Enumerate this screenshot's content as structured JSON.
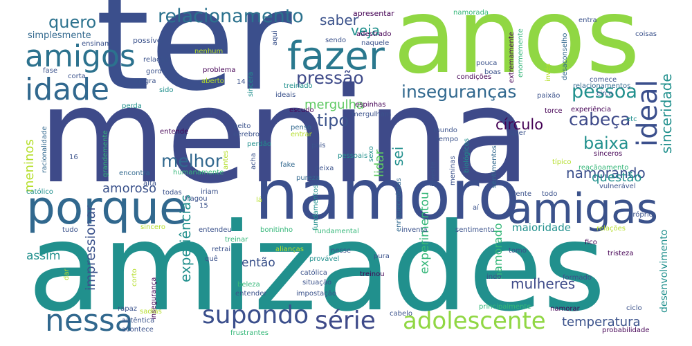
{
  "palette": {
    "dark_purple": "#440154",
    "indigo": "#3b4f8c",
    "blue": "#31688e",
    "teal": "#21908d",
    "green": "#35b779",
    "lime": "#90d743",
    "yellow": "#d2e21b"
  },
  "words": [
    {
      "text": "ter",
      "color": "#3b4f8c"
    },
    {
      "text": "anos",
      "color": "#90d743"
    },
    {
      "text": "menina",
      "color": "#3e4a89"
    },
    {
      "text": "amizades",
      "color": "#21908d"
    },
    {
      "text": "namoro",
      "color": "#3b4f8c"
    },
    {
      "text": "porque",
      "color": "#31688e"
    },
    {
      "text": "fazer",
      "color": "#2a788e"
    },
    {
      "text": "amigas",
      "color": "#3b528b"
    },
    {
      "text": "amigos",
      "color": "#2c728e"
    },
    {
      "text": "idade",
      "color": "#31688e"
    },
    {
      "text": "nessa",
      "color": "#31688e"
    },
    {
      "text": "supondo",
      "color": "#3b4f8c"
    },
    {
      "text": "série",
      "color": "#3e4a89"
    },
    {
      "text": "adolescente",
      "color": "#90d743"
    },
    {
      "text": "relacionamento",
      "color": "#2c728e"
    },
    {
      "text": "quero",
      "color": "#2c728e"
    },
    {
      "text": "saber",
      "color": "#3b528b"
    },
    {
      "text": "veja",
      "color": "#21908d"
    },
    {
      "text": "pressão",
      "color": "#3e4a89"
    },
    {
      "text": "inseguranças",
      "color": "#31688e"
    },
    {
      "text": "pessoa",
      "color": "#21908d"
    },
    {
      "text": "ideal",
      "color": "#3b4f8c"
    },
    {
      "text": "sinceridade",
      "color": "#21908d"
    },
    {
      "text": "mergulha",
      "color": "#5ec962"
    },
    {
      "text": "tipo",
      "color": "#3b528b"
    },
    {
      "text": "círculo",
      "color": "#440154"
    },
    {
      "text": "cabeça",
      "color": "#3e4a89"
    },
    {
      "text": "baixa",
      "color": "#21908d"
    },
    {
      "text": "melhor",
      "color": "#31688e"
    },
    {
      "text": "lidar",
      "color": "#5ec962"
    },
    {
      "text": "sei",
      "color": "#21908d"
    },
    {
      "text": "namorando",
      "color": "#3b4f8c"
    },
    {
      "text": "questão",
      "color": "#21908d"
    },
    {
      "text": "amoroso",
      "color": "#3b528b"
    },
    {
      "text": "experiências",
      "color": "#21908d"
    },
    {
      "text": "impressionar",
      "color": "#3b528b"
    },
    {
      "text": "meninos",
      "color": "#b5de2b"
    },
    {
      "text": "assim",
      "color": "#21908d"
    },
    {
      "text": "então",
      "color": "#3b528b"
    },
    {
      "text": "experimentou",
      "color": "#35b779"
    },
    {
      "text": "namorado",
      "color": "#35b779"
    },
    {
      "text": "mulheres",
      "color": "#3e4a89"
    },
    {
      "text": "maioridade",
      "color": "#21908d"
    },
    {
      "text": "temperatura",
      "color": "#3b528b"
    },
    {
      "text": "desenvolvimento",
      "color": "#21908d"
    },
    {
      "text": "simplesmente",
      "color": "#31688e"
    },
    {
      "text": "ensinam",
      "color": "#3b528b"
    },
    {
      "text": "possível",
      "color": "#3b528b"
    },
    {
      "text": "apresentar",
      "color": "#440154"
    },
    {
      "text": "namorada",
      "color": "#35b779"
    },
    {
      "text": "adestrado",
      "color": "#440154"
    },
    {
      "text": "naquele",
      "color": "#3b528b"
    },
    {
      "text": "sendo",
      "color": "#3b528b"
    },
    {
      "text": "aqui",
      "color": "#3b528b"
    },
    {
      "text": "sincera",
      "color": "#21908d"
    },
    {
      "text": "treinado",
      "color": "#21908d"
    },
    {
      "text": "relação",
      "color": "#3b528b"
    },
    {
      "text": "nenhum",
      "color": "#b5de2b"
    },
    {
      "text": "gorda",
      "color": "#3b528b"
    },
    {
      "text": "problema",
      "color": "#440154"
    },
    {
      "text": "aberto",
      "color": "#b5de2b"
    },
    {
      "text": "magra",
      "color": "#3b528b"
    },
    {
      "text": "sido",
      "color": "#21908d"
    },
    {
      "text": "14",
      "color": "#3b528b"
    },
    {
      "text": "fase",
      "color": "#3b528b"
    },
    {
      "text": "corta",
      "color": "#3b528b"
    },
    {
      "text": "perda",
      "color": "#21908d"
    },
    {
      "text": "18",
      "color": "#3b528b"
    },
    {
      "text": "racionalidade",
      "color": "#31688e"
    },
    {
      "text": "entende",
      "color": "#440154"
    },
    {
      "text": "grandemente",
      "color": "#35b779"
    },
    {
      "text": "16",
      "color": "#3b528b"
    },
    {
      "text": "católico",
      "color": "#21908d"
    },
    {
      "text": "encontra",
      "color": "#31688e"
    },
    {
      "text": "alta",
      "color": "#3b528b"
    },
    {
      "text": "humanamente",
      "color": "#35b779"
    },
    {
      "text": "cérebro",
      "color": "#3b528b"
    },
    {
      "text": "peito",
      "color": "#3b528b"
    },
    {
      "text": "perdão",
      "color": "#21908d"
    },
    {
      "text": "penso",
      "color": "#31688e"
    },
    {
      "text": "entrar",
      "color": "#b5de2b"
    },
    {
      "text": "escudo",
      "color": "#440154"
    },
    {
      "text": "ideais",
      "color": "#3b528b"
    },
    {
      "text": "espinhas",
      "color": "#440154"
    },
    {
      "text": "mergulham",
      "color": "#3b528b"
    },
    {
      "text": "antes",
      "color": "#b5de2b"
    },
    {
      "text": "acha",
      "color": "#3b528b"
    },
    {
      "text": "sexo",
      "color": "#21908d"
    },
    {
      "text": "fake",
      "color": "#31688e"
    },
    {
      "text": "pais",
      "color": "#3b528b"
    },
    {
      "text": "pessoais",
      "color": "#21908d"
    },
    {
      "text": "deixa",
      "color": "#3b528b"
    },
    {
      "text": "pureza",
      "color": "#31688e"
    },
    {
      "text": "todas",
      "color": "#3b528b"
    },
    {
      "text": "iriam",
      "color": "#3b528b"
    },
    {
      "text": "fragou",
      "color": "#3b528b"
    },
    {
      "text": "15",
      "color": "#3b528b"
    },
    {
      "text": "lá",
      "color": "#b5de2b"
    },
    {
      "text": "fundamentos",
      "color": "#21908d"
    },
    {
      "text": "enriquecedoras",
      "color": "#31688e"
    },
    {
      "text": "investe",
      "color": "#3b528b"
    },
    {
      "text": "meninas",
      "color": "#3b528b"
    },
    {
      "text": "biológicos",
      "color": "#21908d"
    },
    {
      "text": "sentimentos",
      "color": "#31688e"
    },
    {
      "text": "típico",
      "color": "#b5de2b"
    },
    {
      "text": "sinceros",
      "color": "#440154"
    },
    {
      "text": "reaçãoamento",
      "color": "#35b779"
    },
    {
      "text": "vulnerável",
      "color": "#3b528b"
    },
    {
      "text": "frente",
      "color": "#3b528b"
    },
    {
      "text": "todo",
      "color": "#3b528b"
    },
    {
      "text": "aí",
      "color": "#3b528b"
    },
    {
      "text": "tudo",
      "color": "#3b528b"
    },
    {
      "text": "sincero",
      "color": "#b5de2b"
    },
    {
      "text": "entendeu",
      "color": "#3b528b"
    },
    {
      "text": "bonitinho",
      "color": "#35b779"
    },
    {
      "text": "fundamental",
      "color": "#35b779"
    },
    {
      "text": "inventa",
      "color": "#3b528b"
    },
    {
      "text": "sentimento",
      "color": "#3b528b"
    },
    {
      "text": "relações",
      "color": "#b5de2b"
    },
    {
      "text": "treinar",
      "color": "#35b779"
    },
    {
      "text": "retrai",
      "color": "#3b528b"
    },
    {
      "text": "alianças",
      "color": "#b5de2b"
    },
    {
      "text": "nesse",
      "color": "#3b528b"
    },
    {
      "text": "tomo",
      "color": "#3b528b"
    },
    {
      "text": "fico",
      "color": "#440154"
    },
    {
      "text": "quê",
      "color": "#3b528b"
    },
    {
      "text": "provável",
      "color": "#21908d"
    },
    {
      "text": "pura",
      "color": "#3b528b"
    },
    {
      "text": "tristeza",
      "color": "#440154"
    },
    {
      "text": "católica",
      "color": "#3b528b"
    },
    {
      "text": "treinou",
      "color": "#440154"
    },
    {
      "text": "indo",
      "color": "#3b528b"
    },
    {
      "text": "formado",
      "color": "#3b528b"
    },
    {
      "text": "situação",
      "color": "#3b528b"
    },
    {
      "text": "beleza",
      "color": "#35b779"
    },
    {
      "text": "entender",
      "color": "#3b528b"
    },
    {
      "text": "impostação",
      "color": "#3b528b"
    },
    {
      "text": "corto",
      "color": "#b5de2b"
    },
    {
      "text": "insegurança",
      "color": "#440154"
    },
    {
      "text": "rapaz",
      "color": "#3b528b"
    },
    {
      "text": "sadias",
      "color": "#b5de2b"
    },
    {
      "text": "autêntica",
      "color": "#3b528b"
    },
    {
      "text": "acontece",
      "color": "#3b528b"
    },
    {
      "text": "frustrantes",
      "color": "#35b779"
    },
    {
      "text": "cabelo",
      "color": "#3b528b"
    },
    {
      "text": "principalmente",
      "color": "#35b779"
    },
    {
      "text": "namorar",
      "color": "#440154"
    },
    {
      "text": "ciclo",
      "color": "#3b528b"
    },
    {
      "text": "probabilidade",
      "color": "#440154"
    },
    {
      "text": "dar",
      "color": "#b5de2b"
    },
    {
      "text": "entra",
      "color": "#3b528b"
    },
    {
      "text": "coisas",
      "color": "#3b528b"
    },
    {
      "text": "desaconselho",
      "color": "#31688e"
    },
    {
      "text": "invés",
      "color": "#b5de2b"
    },
    {
      "text": "extremamente",
      "color": "#440154"
    },
    {
      "text": "enormemente",
      "color": "#35b779"
    },
    {
      "text": "condições",
      "color": "#440154"
    },
    {
      "text": "pouca",
      "color": "#3b528b"
    },
    {
      "text": "boas",
      "color": "#3b528b"
    },
    {
      "text": "comece",
      "color": "#3b528b"
    },
    {
      "text": "relacionamentos",
      "color": "#31688e"
    },
    {
      "text": "paixão",
      "color": "#3b528b"
    },
    {
      "text": "circo",
      "color": "#3b528b"
    },
    {
      "text": "experiência",
      "color": "#440154"
    },
    {
      "text": "torce",
      "color": "#440154"
    },
    {
      "text": "etc",
      "color": "#21908d"
    },
    {
      "text": "próprio",
      "color": "#3b528b"
    },
    {
      "text": "mundo",
      "color": "#3b528b"
    },
    {
      "text": "tempo",
      "color": "#3b528b"
    },
    {
      "text": "quer",
      "color": "#3b528b"
    }
  ]
}
